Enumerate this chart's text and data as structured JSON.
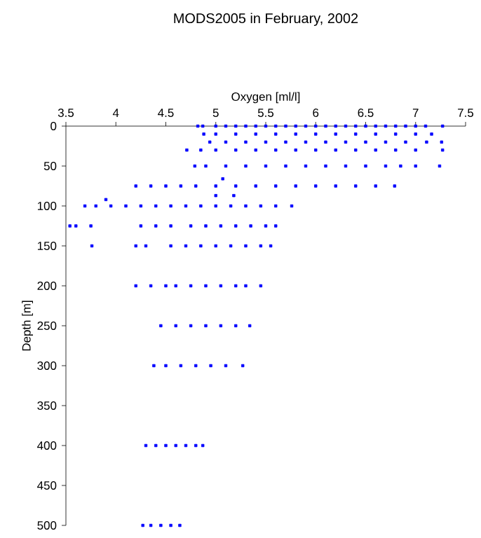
{
  "chart_data": {
    "type": "scatter",
    "title": "MODS2005 in February, 2002",
    "xlabel": "Oxygen [ml/l]",
    "ylabel": "Depth [m]",
    "xlim": [
      3.5,
      7.5
    ],
    "xticks": [
      3.5,
      4,
      4.5,
      5,
      5.5,
      6,
      6.5,
      7,
      7.5
    ],
    "ylim": [
      500,
      0
    ],
    "yticks": [
      0,
      50,
      100,
      150,
      200,
      250,
      300,
      350,
      400,
      450,
      500
    ],
    "marker": "square",
    "series": [
      {
        "color": "#0000ff",
        "x": [
          4.82,
          4.87,
          5.0,
          5.1,
          5.2,
          5.3,
          5.4,
          5.5,
          5.6,
          5.7,
          5.8,
          5.9,
          6.0,
          6.1,
          6.2,
          6.3,
          6.4,
          6.5,
          6.6,
          6.7,
          6.8,
          6.9,
          7.0,
          7.1,
          7.27,
          4.88,
          5.0,
          5.2,
          5.4,
          5.6,
          5.8,
          6.0,
          6.2,
          6.4,
          6.6,
          6.8,
          7.0,
          7.16,
          4.94,
          5.1,
          5.3,
          5.5,
          5.7,
          5.9,
          6.1,
          6.3,
          6.5,
          6.7,
          6.9,
          7.11,
          7.26,
          4.71,
          4.85,
          5.0,
          5.2,
          5.4,
          5.6,
          5.8,
          6.0,
          6.2,
          6.4,
          6.6,
          6.8,
          7.0,
          7.27,
          4.79,
          4.9,
          5.1,
          5.3,
          5.5,
          5.7,
          5.9,
          6.1,
          6.3,
          6.5,
          6.7,
          6.85,
          7.0,
          7.24,
          4.2,
          4.35,
          4.5,
          4.65,
          4.8,
          5.0,
          5.2,
          5.4,
          5.6,
          5.8,
          6.0,
          6.2,
          6.4,
          6.6,
          6.79,
          5.07,
          5.0,
          5.18,
          3.9,
          3.69,
          3.8,
          3.95,
          4.1,
          4.25,
          4.4,
          4.55,
          4.7,
          4.85,
          5.0,
          5.15,
          5.3,
          5.45,
          5.6,
          5.76,
          3.54,
          3.6,
          3.75,
          4.25,
          4.4,
          4.55,
          4.75,
          4.9,
          5.05,
          5.2,
          5.35,
          5.5,
          5.6,
          3.76,
          4.2,
          4.3,
          4.55,
          4.7,
          4.85,
          5.0,
          5.15,
          5.3,
          5.45,
          5.55,
          4.2,
          4.35,
          4.5,
          4.6,
          4.75,
          4.9,
          5.05,
          5.2,
          5.3,
          5.45,
          4.45,
          4.6,
          4.75,
          4.9,
          5.05,
          5.2,
          5.34,
          4.38,
          4.5,
          4.65,
          4.8,
          4.95,
          5.1,
          5.27,
          4.3,
          4.4,
          4.5,
          4.6,
          4.7,
          4.8,
          4.87,
          4.27,
          4.35,
          4.45,
          4.55,
          4.64
        ],
        "values": [
          0,
          0,
          0,
          0,
          0,
          0,
          0,
          0,
          0,
          0,
          0,
          0,
          0,
          0,
          0,
          0,
          0,
          0,
          0,
          0,
          0,
          0,
          0,
          0,
          0,
          10,
          10,
          10,
          10,
          10,
          10,
          10,
          10,
          10,
          10,
          10,
          10,
          10,
          20,
          20,
          20,
          20,
          20,
          20,
          20,
          20,
          20,
          20,
          20,
          20,
          20,
          30,
          30,
          30,
          30,
          30,
          30,
          30,
          30,
          30,
          30,
          30,
          30,
          30,
          30,
          50,
          50,
          50,
          50,
          50,
          50,
          50,
          50,
          50,
          50,
          50,
          50,
          50,
          50,
          75,
          75,
          75,
          75,
          75,
          75,
          75,
          75,
          75,
          75,
          75,
          75,
          75,
          75,
          75,
          66,
          87,
          87,
          92,
          100,
          100,
          100,
          100,
          100,
          100,
          100,
          100,
          100,
          100,
          100,
          100,
          100,
          100,
          100,
          125,
          125,
          125,
          125,
          125,
          125,
          125,
          125,
          125,
          125,
          125,
          125,
          125,
          150,
          150,
          150,
          150,
          150,
          150,
          150,
          150,
          150,
          150,
          150,
          200,
          200,
          200,
          200,
          200,
          200,
          200,
          200,
          200,
          200,
          250,
          250,
          250,
          250,
          250,
          250,
          250,
          300,
          300,
          300,
          300,
          300,
          300,
          300,
          400,
          400,
          400,
          400,
          400,
          400,
          400,
          500,
          500,
          500,
          500,
          500
        ]
      }
    ]
  }
}
